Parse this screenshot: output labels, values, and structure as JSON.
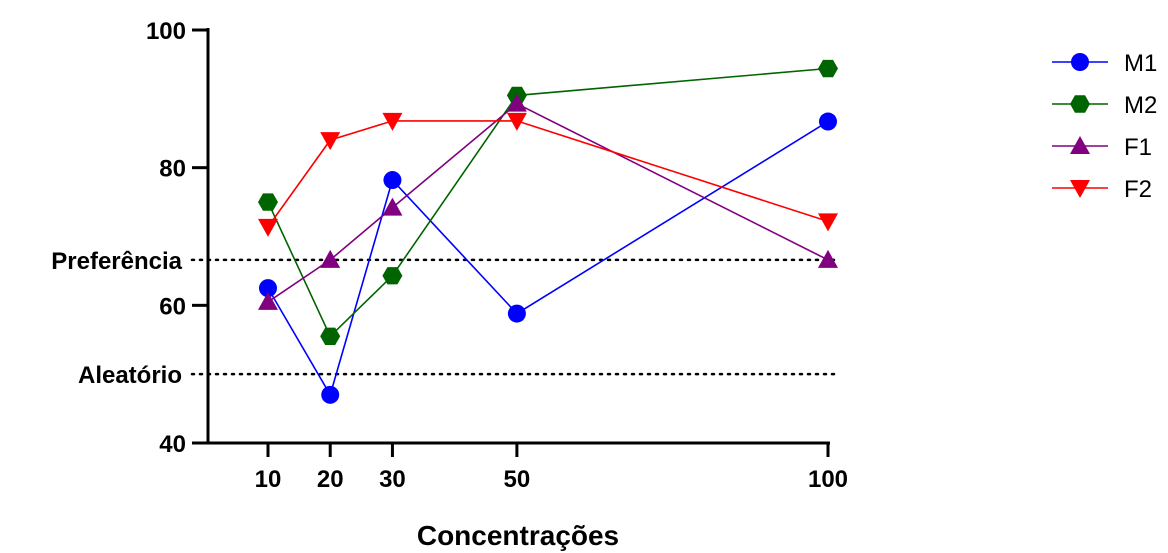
{
  "chart_data": {
    "type": "line",
    "xlabel": "Concentrações",
    "ylabel": "",
    "x": [
      10,
      20,
      30,
      50,
      100
    ],
    "x_tick_labels": [
      "10",
      "20",
      "30",
      "50",
      "100"
    ],
    "ylim": [
      40,
      100
    ],
    "y_ticks": [
      40,
      60,
      80,
      100
    ],
    "y_tick_labels": [
      "40",
      "60",
      "80",
      "100"
    ],
    "grid": false,
    "legend_position": "right",
    "reference_lines": [
      {
        "label": "Preferência",
        "value": 66.6,
        "style": "dotted"
      },
      {
        "label": "Aleatório",
        "value": 50,
        "style": "dotted"
      }
    ],
    "series": [
      {
        "name": "M1",
        "color": "#0000ff",
        "marker": "circle",
        "values": [
          62.5,
          47,
          78.2,
          58.8,
          86.7
        ]
      },
      {
        "name": "M2",
        "color": "#006400",
        "marker": "hexagon",
        "values": [
          75,
          55.5,
          64.3,
          90.5,
          94.4
        ]
      },
      {
        "name": "F1",
        "color": "#800080",
        "marker": "triangle-up",
        "values": [
          60.5,
          66.6,
          74.2,
          89.3,
          66.6
        ]
      },
      {
        "name": "F2",
        "color": "#ff0000",
        "marker": "triangle-down",
        "values": [
          71.4,
          84,
          86.8,
          86.8,
          72.2
        ]
      }
    ]
  }
}
